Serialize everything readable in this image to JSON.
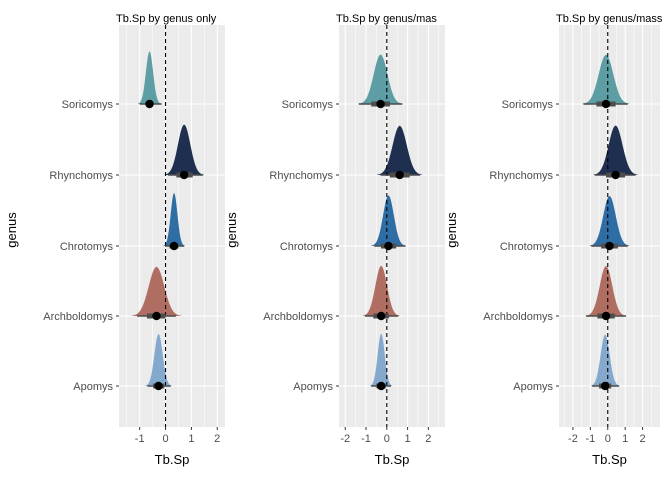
{
  "chart_data": [
    {
      "type": "density",
      "title": "Tb.Sp by genus only",
      "xlabel": "Tb.Sp",
      "ylabel": "genus",
      "xlim": [
        -1.8,
        2.3
      ],
      "xticks": [
        -1,
        0,
        1,
        2
      ],
      "xtick_labels": [
        "-1",
        "0",
        "1",
        "2"
      ],
      "reference_line_x": 0,
      "categories": [
        "Soricomys",
        "Rhynchomys",
        "Chrotomys",
        "Archboldomys",
        "Apomys"
      ],
      "series": [
        {
          "category": "Soricomys",
          "mean": -0.62,
          "sd": 0.14,
          "interval_inner": [
            -0.75,
            -0.48
          ],
          "interval_outer": [
            -1.0,
            -0.15
          ]
        },
        {
          "category": "Rhynchomys",
          "mean": 0.72,
          "sd": 0.24,
          "interval_inner": [
            0.42,
            1.05
          ],
          "interval_outer": [
            0.1,
            1.45
          ]
        },
        {
          "category": "Chrotomys",
          "mean": 0.33,
          "sd": 0.13,
          "interval_inner": [
            0.15,
            0.5
          ],
          "interval_outer": [
            -0.02,
            0.72
          ]
        },
        {
          "category": "Archboldomys",
          "mean": -0.35,
          "sd": 0.3,
          "interval_inner": [
            -0.72,
            0.0
          ],
          "interval_outer": [
            -1.1,
            0.4
          ]
        },
        {
          "category": "Apomys",
          "mean": -0.27,
          "sd": 0.16,
          "interval_inner": [
            -0.48,
            -0.05
          ],
          "interval_outer": [
            -0.7,
            0.2
          ]
        }
      ]
    },
    {
      "type": "density",
      "title": "Tb.Sp by genus/mas",
      "xlabel": "Tb.Sp",
      "ylabel": "genus",
      "xlim": [
        -2.3,
        2.8
      ],
      "xticks": [
        -2,
        -1,
        0,
        1,
        2
      ],
      "xtick_labels": [
        "-2",
        "-1",
        "0",
        "1",
        "2"
      ],
      "reference_line_x": 0,
      "categories": [
        "Soricomys",
        "Rhynchomys",
        "Chrotomys",
        "Archboldomys",
        "Apomys"
      ],
      "series": [
        {
          "category": "Soricomys",
          "mean": -0.3,
          "sd": 0.33,
          "interval_inner": [
            -0.75,
            0.15
          ],
          "interval_outer": [
            -1.35,
            0.75
          ]
        },
        {
          "category": "Rhynchomys",
          "mean": 0.62,
          "sd": 0.34,
          "interval_inner": [
            0.15,
            1.1
          ],
          "interval_outer": [
            -0.3,
            1.6
          ]
        },
        {
          "category": "Chrotomys",
          "mean": 0.08,
          "sd": 0.26,
          "interval_inner": [
            -0.28,
            0.45
          ],
          "interval_outer": [
            -0.6,
            0.9
          ]
        },
        {
          "category": "Archboldomys",
          "mean": -0.27,
          "sd": 0.28,
          "interval_inner": [
            -0.65,
            0.1
          ],
          "interval_outer": [
            -1.05,
            0.55
          ]
        },
        {
          "category": "Apomys",
          "mean": -0.27,
          "sd": 0.17,
          "interval_inner": [
            -0.5,
            -0.05
          ],
          "interval_outer": [
            -0.75,
            0.2
          ]
        }
      ]
    },
    {
      "type": "density",
      "title": "Tb.Sp by genus/mass",
      "xlabel": "Tb.Sp",
      "ylabel": "genus",
      "xlim": [
        -2.8,
        3.0
      ],
      "xticks": [
        -2,
        -1,
        0,
        1,
        2
      ],
      "xtick_labels": [
        "-2",
        "-1",
        "0",
        "1",
        "2"
      ],
      "reference_line_x": 0,
      "categories": [
        "Soricomys",
        "Rhynchomys",
        "Chrotomys",
        "Archboldomys",
        "Apomys"
      ],
      "series": [
        {
          "category": "Soricomys",
          "mean": -0.1,
          "sd": 0.42,
          "interval_inner": [
            -0.65,
            0.45
          ],
          "interval_outer": [
            -1.4,
            1.15
          ]
        },
        {
          "category": "Rhynchomys",
          "mean": 0.45,
          "sd": 0.4,
          "interval_inner": [
            -0.1,
            1.0
          ],
          "interval_outer": [
            -0.75,
            1.6
          ]
        },
        {
          "category": "Chrotomys",
          "mean": 0.1,
          "sd": 0.36,
          "interval_inner": [
            -0.38,
            0.58
          ],
          "interval_outer": [
            -0.95,
            1.15
          ]
        },
        {
          "category": "Archboldomys",
          "mean": -0.1,
          "sd": 0.36,
          "interval_inner": [
            -0.6,
            0.4
          ],
          "interval_outer": [
            -1.25,
            1.05
          ]
        },
        {
          "category": "Apomys",
          "mean": -0.15,
          "sd": 0.26,
          "interval_inner": [
            -0.5,
            0.2
          ],
          "interval_outer": [
            -0.9,
            0.65
          ]
        }
      ]
    }
  ],
  "colors": {
    "panel_background": "#ebebeb",
    "grid": "#ffffff",
    "interval": "#4d4d4d",
    "point": "#000000",
    "genus": {
      "Soricomys": "#5c9ea3",
      "Rhynchomys": "#1f2f50",
      "Chrotomys": "#2f6ea5",
      "Archboldomys": "#b06e63",
      "Apomys": "#84a9cc"
    }
  }
}
